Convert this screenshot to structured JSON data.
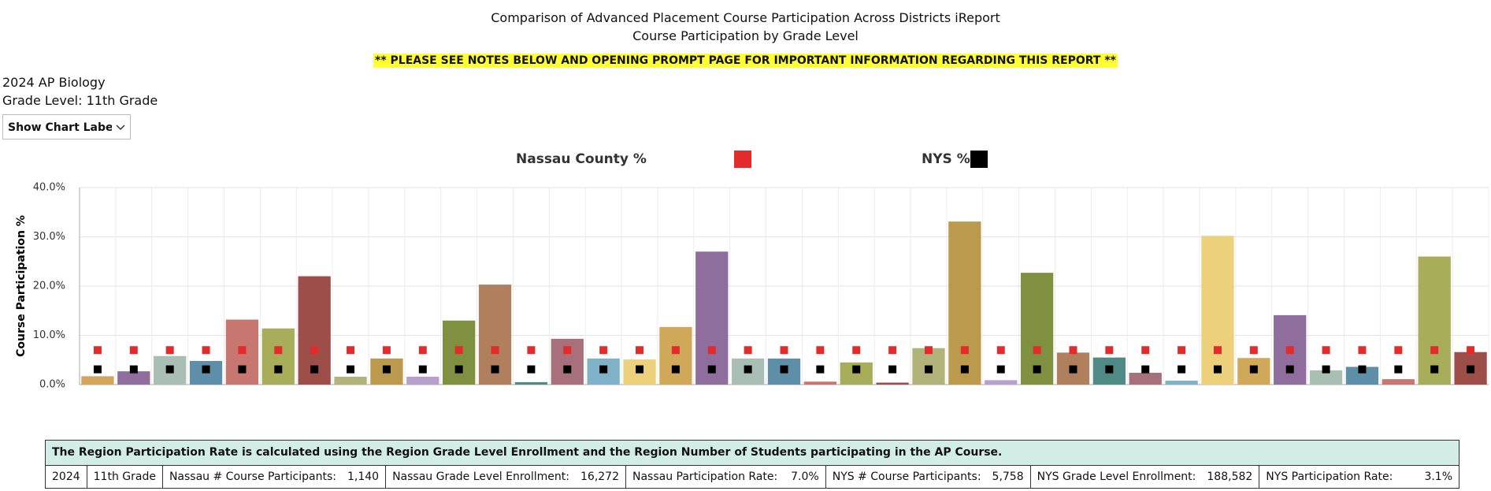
{
  "header": {
    "title": "Comparison of Advanced Placement Course Participation Across Districts iReport",
    "subtitle": "Course Participation by Grade Level",
    "notice": "** PLEASE SEE NOTES BELOW AND OPENING PROMPT PAGE FOR IMPORTANT INFORMATION REGARDING THIS REPORT **",
    "course": "2024 AP Biology",
    "grade": "Grade Level: 11th Grade",
    "dropdown": "Show Chart Labels"
  },
  "chart_data": {
    "type": "bar",
    "ylabel": "Course Participation %",
    "categories": [
      null,
      null,
      null,
      null,
      null,
      null,
      null,
      null,
      null,
      null,
      null,
      null,
      null,
      null,
      null,
      null,
      null,
      null,
      null,
      null,
      null,
      null,
      null,
      null,
      null,
      null,
      null,
      null,
      null,
      null,
      null,
      null,
      null,
      null,
      null,
      null,
      null,
      null,
      null
    ],
    "values": [
      1.7,
      2.7,
      5.8,
      4.8,
      13.2,
      11.4,
      22.0,
      1.6,
      5.3,
      1.6,
      13.0,
      20.3,
      0.5,
      9.3,
      5.3,
      5.1,
      11.7,
      27.0,
      5.3,
      5.3,
      0.6,
      4.5,
      0.4,
      7.4,
      33.1,
      0.9,
      22.7,
      6.5,
      5.5,
      2.4,
      0.8,
      30.2,
      5.4,
      14.1,
      2.9,
      3.6,
      1.1,
      26.0,
      6.6
    ],
    "colors": [
      "#d3a55c",
      "#8f6e9d",
      "#a9bfb6",
      "#5f8fa8",
      "#c7776f",
      "#a8ad5a",
      "#9e4e49",
      "#b1b37a",
      "#bb9a4e",
      "#b7a0cc",
      "#7f9140",
      "#b07f5e",
      "#4f8a86",
      "#a8707a",
      "#7fb2c7",
      "#edd07c",
      "#d0a85a",
      "#8f6e9d",
      "#a9bfb6",
      "#5f8fa8",
      "#c7776f",
      "#a8ad5a",
      "#9e4e49",
      "#b1b37a",
      "#bb9a4e",
      "#b7a0cc",
      "#7f9140",
      "#b07f5e",
      "#4f8a86",
      "#a8707a",
      "#7fb2c7",
      "#edd07c",
      "#d0a85a",
      "#8f6e9d",
      "#a9bfb6",
      "#5f8fa8",
      "#c7776f",
      "#a8ad5a",
      "#9e4e49"
    ],
    "series": [
      {
        "name": "Nassau County %",
        "color": "#e32b2b",
        "values": [
          7.0,
          7.0,
          7.0,
          7.0,
          7.0,
          7.0,
          7.0,
          7.0,
          7.0,
          7.0,
          7.0,
          7.0,
          7.0,
          7.0,
          7.0,
          7.0,
          7.0,
          7.0,
          7.0,
          7.0,
          7.0,
          7.0,
          7.0,
          7.0,
          7.0,
          7.0,
          7.0,
          7.0,
          7.0,
          7.0,
          7.0,
          7.0,
          7.0,
          7.0,
          7.0,
          7.0,
          7.0,
          7.0,
          7.0
        ]
      },
      {
        "name": "NYS %",
        "color": "#000000",
        "values": [
          3.1,
          3.1,
          3.1,
          3.1,
          3.1,
          3.1,
          3.1,
          3.1,
          3.1,
          3.1,
          3.1,
          3.1,
          3.1,
          3.1,
          3.1,
          3.1,
          3.1,
          3.1,
          3.1,
          3.1,
          3.1,
          3.1,
          3.1,
          3.1,
          3.1,
          3.1,
          3.1,
          3.1,
          3.1,
          3.1,
          3.1,
          3.1,
          3.1,
          3.1,
          3.1,
          3.1,
          3.1,
          3.1,
          3.1
        ]
      }
    ],
    "ylim": [
      0,
      40
    ],
    "yticks": [
      {
        "value": 0,
        "label": "0.0%"
      },
      {
        "value": 10,
        "label": "10.0%"
      },
      {
        "value": 20,
        "label": "20.0%"
      },
      {
        "value": 30,
        "label": "30.0%"
      },
      {
        "value": 40,
        "label": "40.0%"
      }
    ],
    "grid": true
  },
  "table": {
    "note": "The Region Participation Rate is calculated using the Region Grade Level Enrollment  and the Region Number of Students participating in the AP Course.",
    "row": [
      "2024",
      "11th Grade",
      "Nassau # Course Participants:",
      "1,140",
      "Nassau Grade Level Enrollment:",
      "16,272",
      "Nassau Participation Rate:",
      "7.0%",
      "NYS # Course Participants:",
      "5,758",
      "NYS Grade Level Enrollment:",
      "188,582",
      "NYS Participation Rate:",
      "3.1%"
    ]
  }
}
